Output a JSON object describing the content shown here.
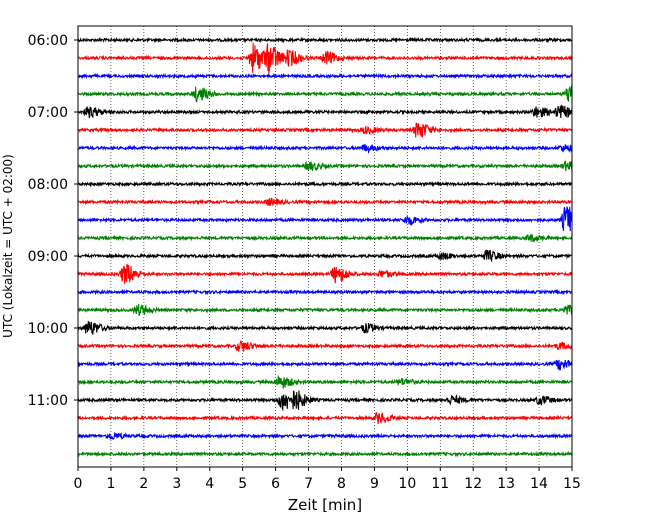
{
  "chart_data": {
    "type": "line",
    "title": "",
    "xlabel": "Zeit  [min]",
    "ylabel": "UTC (Lokalzeit = UTC + 02:00)",
    "xlim": [
      0,
      15
    ],
    "x_ticks": [
      "0",
      "1",
      "2",
      "3",
      "4",
      "5",
      "6",
      "7",
      "8",
      "9",
      "10",
      "11",
      "12",
      "13",
      "14",
      "15"
    ],
    "y_tick_labels": [
      {
        "trace": 0,
        "label": "06:00"
      },
      {
        "trace": 4,
        "label": "07:00"
      },
      {
        "trace": 8,
        "label": "08:00"
      },
      {
        "trace": 12,
        "label": "09:00"
      },
      {
        "trace": 16,
        "label": "10:00"
      },
      {
        "trace": 20,
        "label": "11:00"
      }
    ],
    "grid_x": true,
    "series_colors": [
      "#000000",
      "#ff0000",
      "#0000ff",
      "#008000"
    ],
    "traces": [
      {
        "start": "06:00",
        "color": "#000000",
        "events": []
      },
      {
        "start": "06:15",
        "color": "#ff0000",
        "events": [
          {
            "t": 5.3,
            "amp": 14
          },
          {
            "t": 5.8,
            "amp": 12
          },
          {
            "t": 6.4,
            "amp": 7
          },
          {
            "t": 7.5,
            "amp": 6
          }
        ]
      },
      {
        "start": "06:30",
        "color": "#0000ff",
        "events": []
      },
      {
        "start": "06:45",
        "color": "#008000",
        "events": [
          {
            "t": 3.6,
            "amp": 7
          },
          {
            "t": 14.9,
            "amp": 9
          }
        ]
      },
      {
        "start": "07:00",
        "color": "#000000",
        "events": [
          {
            "t": 0.3,
            "amp": 5
          },
          {
            "t": 13.9,
            "amp": 5
          },
          {
            "t": 14.6,
            "amp": 6
          }
        ]
      },
      {
        "start": "07:15",
        "color": "#ff0000",
        "events": [
          {
            "t": 10.3,
            "amp": 8
          },
          {
            "t": 8.7,
            "amp": 3
          }
        ]
      },
      {
        "start": "07:30",
        "color": "#0000ff",
        "events": [
          {
            "t": 8.7,
            "amp": 3
          },
          {
            "t": 14.7,
            "amp": 3
          }
        ]
      },
      {
        "start": "07:45",
        "color": "#008000",
        "events": [
          {
            "t": 7.0,
            "amp": 4
          },
          {
            "t": 14.8,
            "amp": 4
          }
        ]
      },
      {
        "start": "08:00",
        "color": "#000000",
        "events": []
      },
      {
        "start": "08:15",
        "color": "#ff0000",
        "events": [
          {
            "t": 5.8,
            "amp": 3
          }
        ]
      },
      {
        "start": "08:30",
        "color": "#0000ff",
        "events": [
          {
            "t": 10.0,
            "amp": 4
          },
          {
            "t": 14.8,
            "amp": 14
          }
        ]
      },
      {
        "start": "08:45",
        "color": "#008000",
        "events": [
          {
            "t": 13.7,
            "amp": 3
          }
        ]
      },
      {
        "start": "09:00",
        "color": "#000000",
        "events": [
          {
            "t": 12.4,
            "amp": 5
          },
          {
            "t": 11.0,
            "amp": 3
          }
        ]
      },
      {
        "start": "09:15",
        "color": "#ff0000",
        "events": [
          {
            "t": 1.4,
            "amp": 10
          },
          {
            "t": 7.8,
            "amp": 8
          },
          {
            "t": 9.2,
            "amp": 3
          }
        ]
      },
      {
        "start": "09:30",
        "color": "#0000ff",
        "events": []
      },
      {
        "start": "09:45",
        "color": "#008000",
        "events": [
          {
            "t": 1.8,
            "amp": 5
          },
          {
            "t": 14.8,
            "amp": 4
          }
        ]
      },
      {
        "start": "10:00",
        "color": "#000000",
        "events": [
          {
            "t": 0.3,
            "amp": 7
          },
          {
            "t": 8.7,
            "amp": 4
          }
        ]
      },
      {
        "start": "10:15",
        "color": "#ff0000",
        "events": [
          {
            "t": 4.9,
            "amp": 5
          },
          {
            "t": 14.6,
            "amp": 3
          }
        ]
      },
      {
        "start": "10:30",
        "color": "#0000ff",
        "events": [
          {
            "t": 14.6,
            "amp": 5
          }
        ]
      },
      {
        "start": "10:45",
        "color": "#008000",
        "events": [
          {
            "t": 6.1,
            "amp": 6
          },
          {
            "t": 9.8,
            "amp": 3
          }
        ]
      },
      {
        "start": "11:00",
        "color": "#000000",
        "events": [
          {
            "t": 6.2,
            "amp": 10
          },
          {
            "t": 6.6,
            "amp": 7
          },
          {
            "t": 11.3,
            "amp": 4
          },
          {
            "t": 14.0,
            "amp": 4
          }
        ]
      },
      {
        "start": "11:15",
        "color": "#ff0000",
        "events": [
          {
            "t": 9.1,
            "amp": 5
          }
        ]
      },
      {
        "start": "11:30",
        "color": "#0000ff",
        "events": [
          {
            "t": 1.0,
            "amp": 3
          }
        ]
      },
      {
        "start": "11:45",
        "color": "#008000",
        "events": []
      }
    ]
  }
}
